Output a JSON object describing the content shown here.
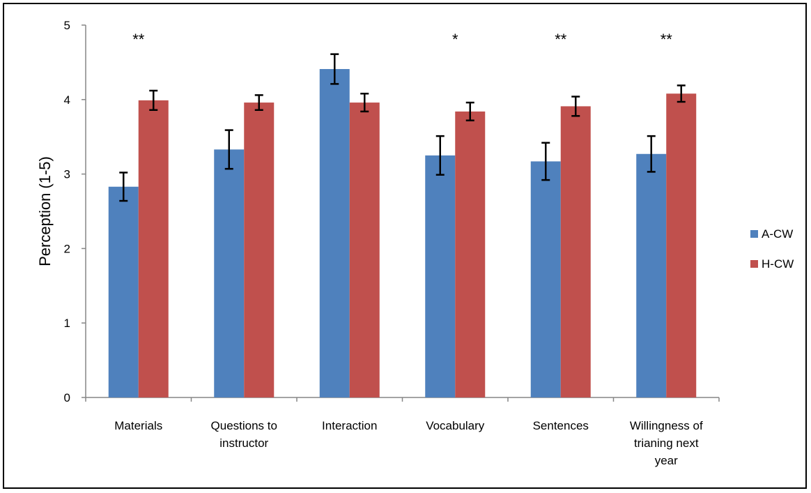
{
  "chart_data": {
    "type": "bar",
    "ylabel": "Perception (1-5)",
    "ylim": [
      0,
      5
    ],
    "yticks": [
      "0",
      "1",
      "2",
      "3",
      "4",
      "5"
    ],
    "grid": false,
    "legend_position": "right",
    "categories": [
      [
        "Materials"
      ],
      [
        "Questions to",
        "instructor"
      ],
      [
        "Interaction"
      ],
      [
        "Vocabulary"
      ],
      [
        "Sentences"
      ],
      [
        "Willingness of",
        "trianing next",
        "year"
      ]
    ],
    "significance": [
      "**",
      "",
      "",
      "*",
      "**",
      "**"
    ],
    "series": [
      {
        "name": "A-CW",
        "color": "#4F81BD",
        "values": [
          2.83,
          3.33,
          4.41,
          3.25,
          3.17,
          3.27
        ],
        "errors": [
          0.19,
          0.26,
          0.2,
          0.26,
          0.25,
          0.24
        ]
      },
      {
        "name": "H-CW",
        "color": "#C0504D",
        "values": [
          3.99,
          3.96,
          3.96,
          3.84,
          3.91,
          4.08
        ],
        "errors": [
          0.13,
          0.1,
          0.12,
          0.12,
          0.13,
          0.11
        ]
      }
    ]
  }
}
